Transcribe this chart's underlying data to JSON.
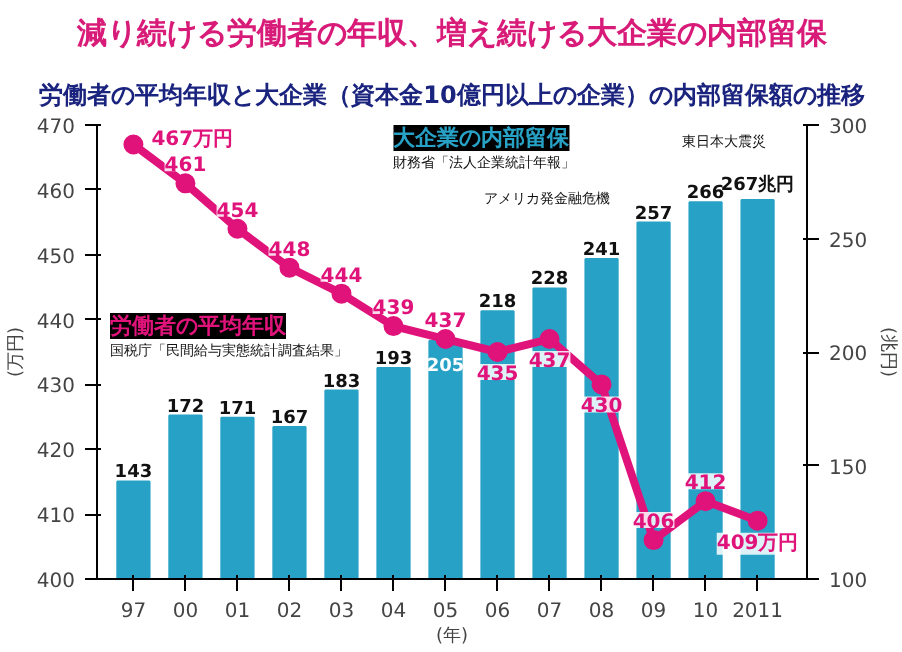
{
  "chart_data": {
    "type": "bar",
    "title": "減り続ける労働者の年収、増え続ける大企業の内部留保",
    "subtitle": "労働者の平均年収と大企業（資本金10億円以上の企業）の内部留保額の推移",
    "categories": [
      "97",
      "00",
      "01",
      "02",
      "03",
      "04",
      "05",
      "06",
      "07",
      "08",
      "09",
      "10",
      "2011"
    ],
    "xlabel": "(年)",
    "ylabel": "(万円)",
    "y2label": "(兆円)",
    "ylim": [
      400,
      470
    ],
    "yticks": [
      400,
      410,
      420,
      430,
      440,
      450,
      460,
      470
    ],
    "y2lim": [
      100,
      300
    ],
    "y2ticks": [
      100,
      150,
      200,
      250,
      300
    ],
    "series": [
      {
        "name": "大企業の内部留保",
        "axis": "y2",
        "color": "#27a2c6",
        "values": [
          143,
          172,
          171,
          167,
          183,
          193,
          205,
          218,
          228,
          241,
          257,
          266,
          267
        ],
        "value_labels": [
          "143",
          "172",
          "171",
          "167",
          "183",
          "193",
          "205",
          "218",
          "228",
          "241",
          "257",
          "266",
          "267兆円"
        ]
      },
      {
        "name": "労働者の平均年収",
        "type": "line",
        "axis": "y",
        "color": "#e0137a",
        "marker": "circle",
        "values": [
          467,
          461,
          454,
          448,
          444,
          439,
          437,
          435,
          437,
          430,
          406,
          412,
          409
        ],
        "value_labels": [
          "467万円",
          "461",
          "454",
          "448",
          "444",
          "439",
          "437",
          "435",
          "437",
          "430",
          "406",
          "412",
          "409万円"
        ]
      }
    ],
    "annotations": [
      "アメリカ発金融危機",
      "東日本大震災",
      "財務省「法人企業統計年報」",
      "国税庁「民間給与実態統計調査結果」"
    ],
    "grid": false
  }
}
